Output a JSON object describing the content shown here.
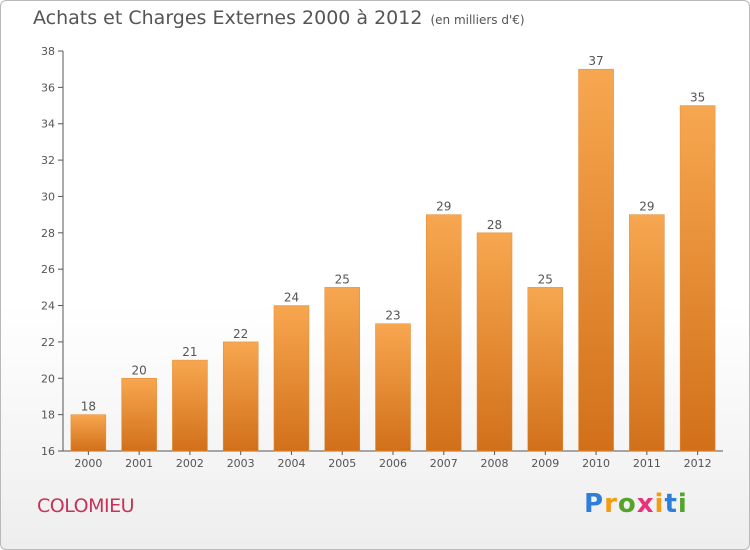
{
  "header": {
    "title": "Achats et Charges Externes 2000 à 2012",
    "unit": "(en milliers d'€)"
  },
  "footer": {
    "commune": "COLOMIEU",
    "logo_letters": [
      "P",
      "r",
      "o",
      "x",
      "i",
      "t",
      "i"
    ],
    "logo_colors": [
      "#2f7fd8",
      "#f39c12",
      "#55a32b",
      "#e8327a",
      "#f39c12",
      "#2f7fd8",
      "#55a32b"
    ]
  },
  "chart_data": {
    "type": "bar",
    "categories": [
      "2000",
      "2001",
      "2002",
      "2003",
      "2004",
      "2005",
      "2006",
      "2007",
      "2008",
      "2009",
      "2010",
      "2011",
      "2012"
    ],
    "values": [
      18,
      20,
      21,
      22,
      24,
      25,
      23,
      29,
      28,
      25,
      37,
      29,
      35
    ],
    "ylim": [
      16,
      38
    ],
    "yticks": [
      16,
      18,
      20,
      22,
      24,
      26,
      28,
      30,
      32,
      34,
      36,
      38
    ],
    "grid": false,
    "bar_color_top": "#f7a750",
    "bar_color_bottom": "#d2701a",
    "axis_color": "#555555"
  }
}
